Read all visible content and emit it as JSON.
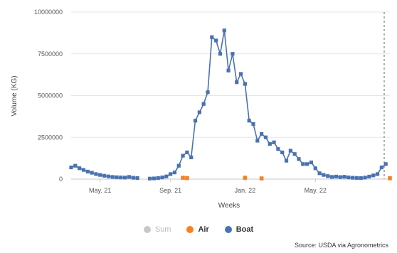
{
  "chart_data": {
    "type": "line",
    "xlabel": "Weeks",
    "ylabel": "Volume (KG)",
    "ylim": [
      0,
      10000000
    ],
    "yticks": [
      "0",
      "2500000",
      "5000000",
      "7500000",
      "10000000"
    ],
    "xticks": [
      {
        "week": 7,
        "label": "May. 21"
      },
      {
        "week": 24,
        "label": "Sep. 21"
      },
      {
        "week": 42,
        "label": "Jan. 22"
      },
      {
        "week": 59,
        "label": "May. 22"
      }
    ],
    "week_range": [
      0,
      77
    ],
    "grid": "horizontal",
    "colors": {
      "Sum": "#c8c8c8",
      "Air": "#f58220",
      "Boat": "#4a72b0"
    },
    "series": [
      {
        "name": "Boat",
        "segments": [
          [
            [
              0,
              700000
            ],
            [
              1,
              800000
            ],
            [
              2,
              650000
            ],
            [
              3,
              550000
            ],
            [
              4,
              450000
            ],
            [
              5,
              380000
            ],
            [
              6,
              300000
            ],
            [
              7,
              250000
            ],
            [
              8,
              200000
            ],
            [
              9,
              160000
            ],
            [
              10,
              130000
            ],
            [
              11,
              110000
            ],
            [
              12,
              100000
            ],
            [
              13,
              90000
            ],
            [
              14,
              130000
            ],
            [
              15,
              80000
            ],
            [
              16,
              60000
            ]
          ],
          [
            [
              19,
              30000
            ],
            [
              20,
              40000
            ],
            [
              21,
              60000
            ],
            [
              22,
              100000
            ],
            [
              23,
              160000
            ],
            [
              24,
              300000
            ],
            [
              25,
              400000
            ],
            [
              26,
              800000
            ],
            [
              27,
              1400000
            ],
            [
              28,
              1600000
            ],
            [
              29,
              1300000
            ],
            [
              30,
              3500000
            ],
            [
              31,
              4000000
            ],
            [
              32,
              4500000
            ],
            [
              33,
              5200000
            ],
            [
              34,
              8500000
            ],
            [
              35,
              8300000
            ],
            [
              36,
              7500000
            ],
            [
              37,
              8900000
            ],
            [
              38,
              6500000
            ],
            [
              39,
              7500000
            ],
            [
              40,
              5800000
            ],
            [
              41,
              6300000
            ],
            [
              42,
              5700000
            ],
            [
              43,
              3500000
            ],
            [
              44,
              3300000
            ],
            [
              45,
              2300000
            ],
            [
              46,
              2700000
            ],
            [
              47,
              2500000
            ],
            [
              48,
              2100000
            ],
            [
              49,
              2200000
            ],
            [
              50,
              1800000
            ],
            [
              51,
              1600000
            ],
            [
              52,
              1100000
            ],
            [
              53,
              1700000
            ],
            [
              54,
              1500000
            ],
            [
              55,
              1200000
            ],
            [
              56,
              900000
            ],
            [
              57,
              900000
            ],
            [
              58,
              1000000
            ],
            [
              59,
              650000
            ],
            [
              60,
              350000
            ],
            [
              61,
              250000
            ],
            [
              62,
              180000
            ],
            [
              63,
              130000
            ],
            [
              64,
              150000
            ],
            [
              65,
              120000
            ],
            [
              66,
              140000
            ],
            [
              67,
              100000
            ],
            [
              68,
              80000
            ],
            [
              69,
              70000
            ],
            [
              70,
              60000
            ],
            [
              71,
              90000
            ],
            [
              72,
              150000
            ],
            [
              73,
              220000
            ],
            [
              74,
              300000
            ],
            [
              75,
              700000
            ],
            [
              76,
              900000
            ]
          ]
        ]
      },
      {
        "name": "Air",
        "points": [
          [
            27,
            80000
          ],
          [
            28,
            60000
          ],
          [
            42,
            80000
          ],
          [
            46,
            40000
          ],
          [
            77,
            50000
          ]
        ]
      },
      {
        "name": "Sum",
        "points": []
      }
    ],
    "annotations": [
      "dashed vertical line at right edge (week 77)"
    ],
    "legend": {
      "position": "bottom",
      "items": [
        {
          "label": "Sum",
          "color": "#c8c8c8",
          "style": "dim"
        },
        {
          "label": "Air",
          "color": "#f58220",
          "style": "bold"
        },
        {
          "label": "Boat",
          "color": "#4a72b0",
          "style": "bold"
        }
      ]
    },
    "source": "Source: USDA via Agronometrics"
  }
}
